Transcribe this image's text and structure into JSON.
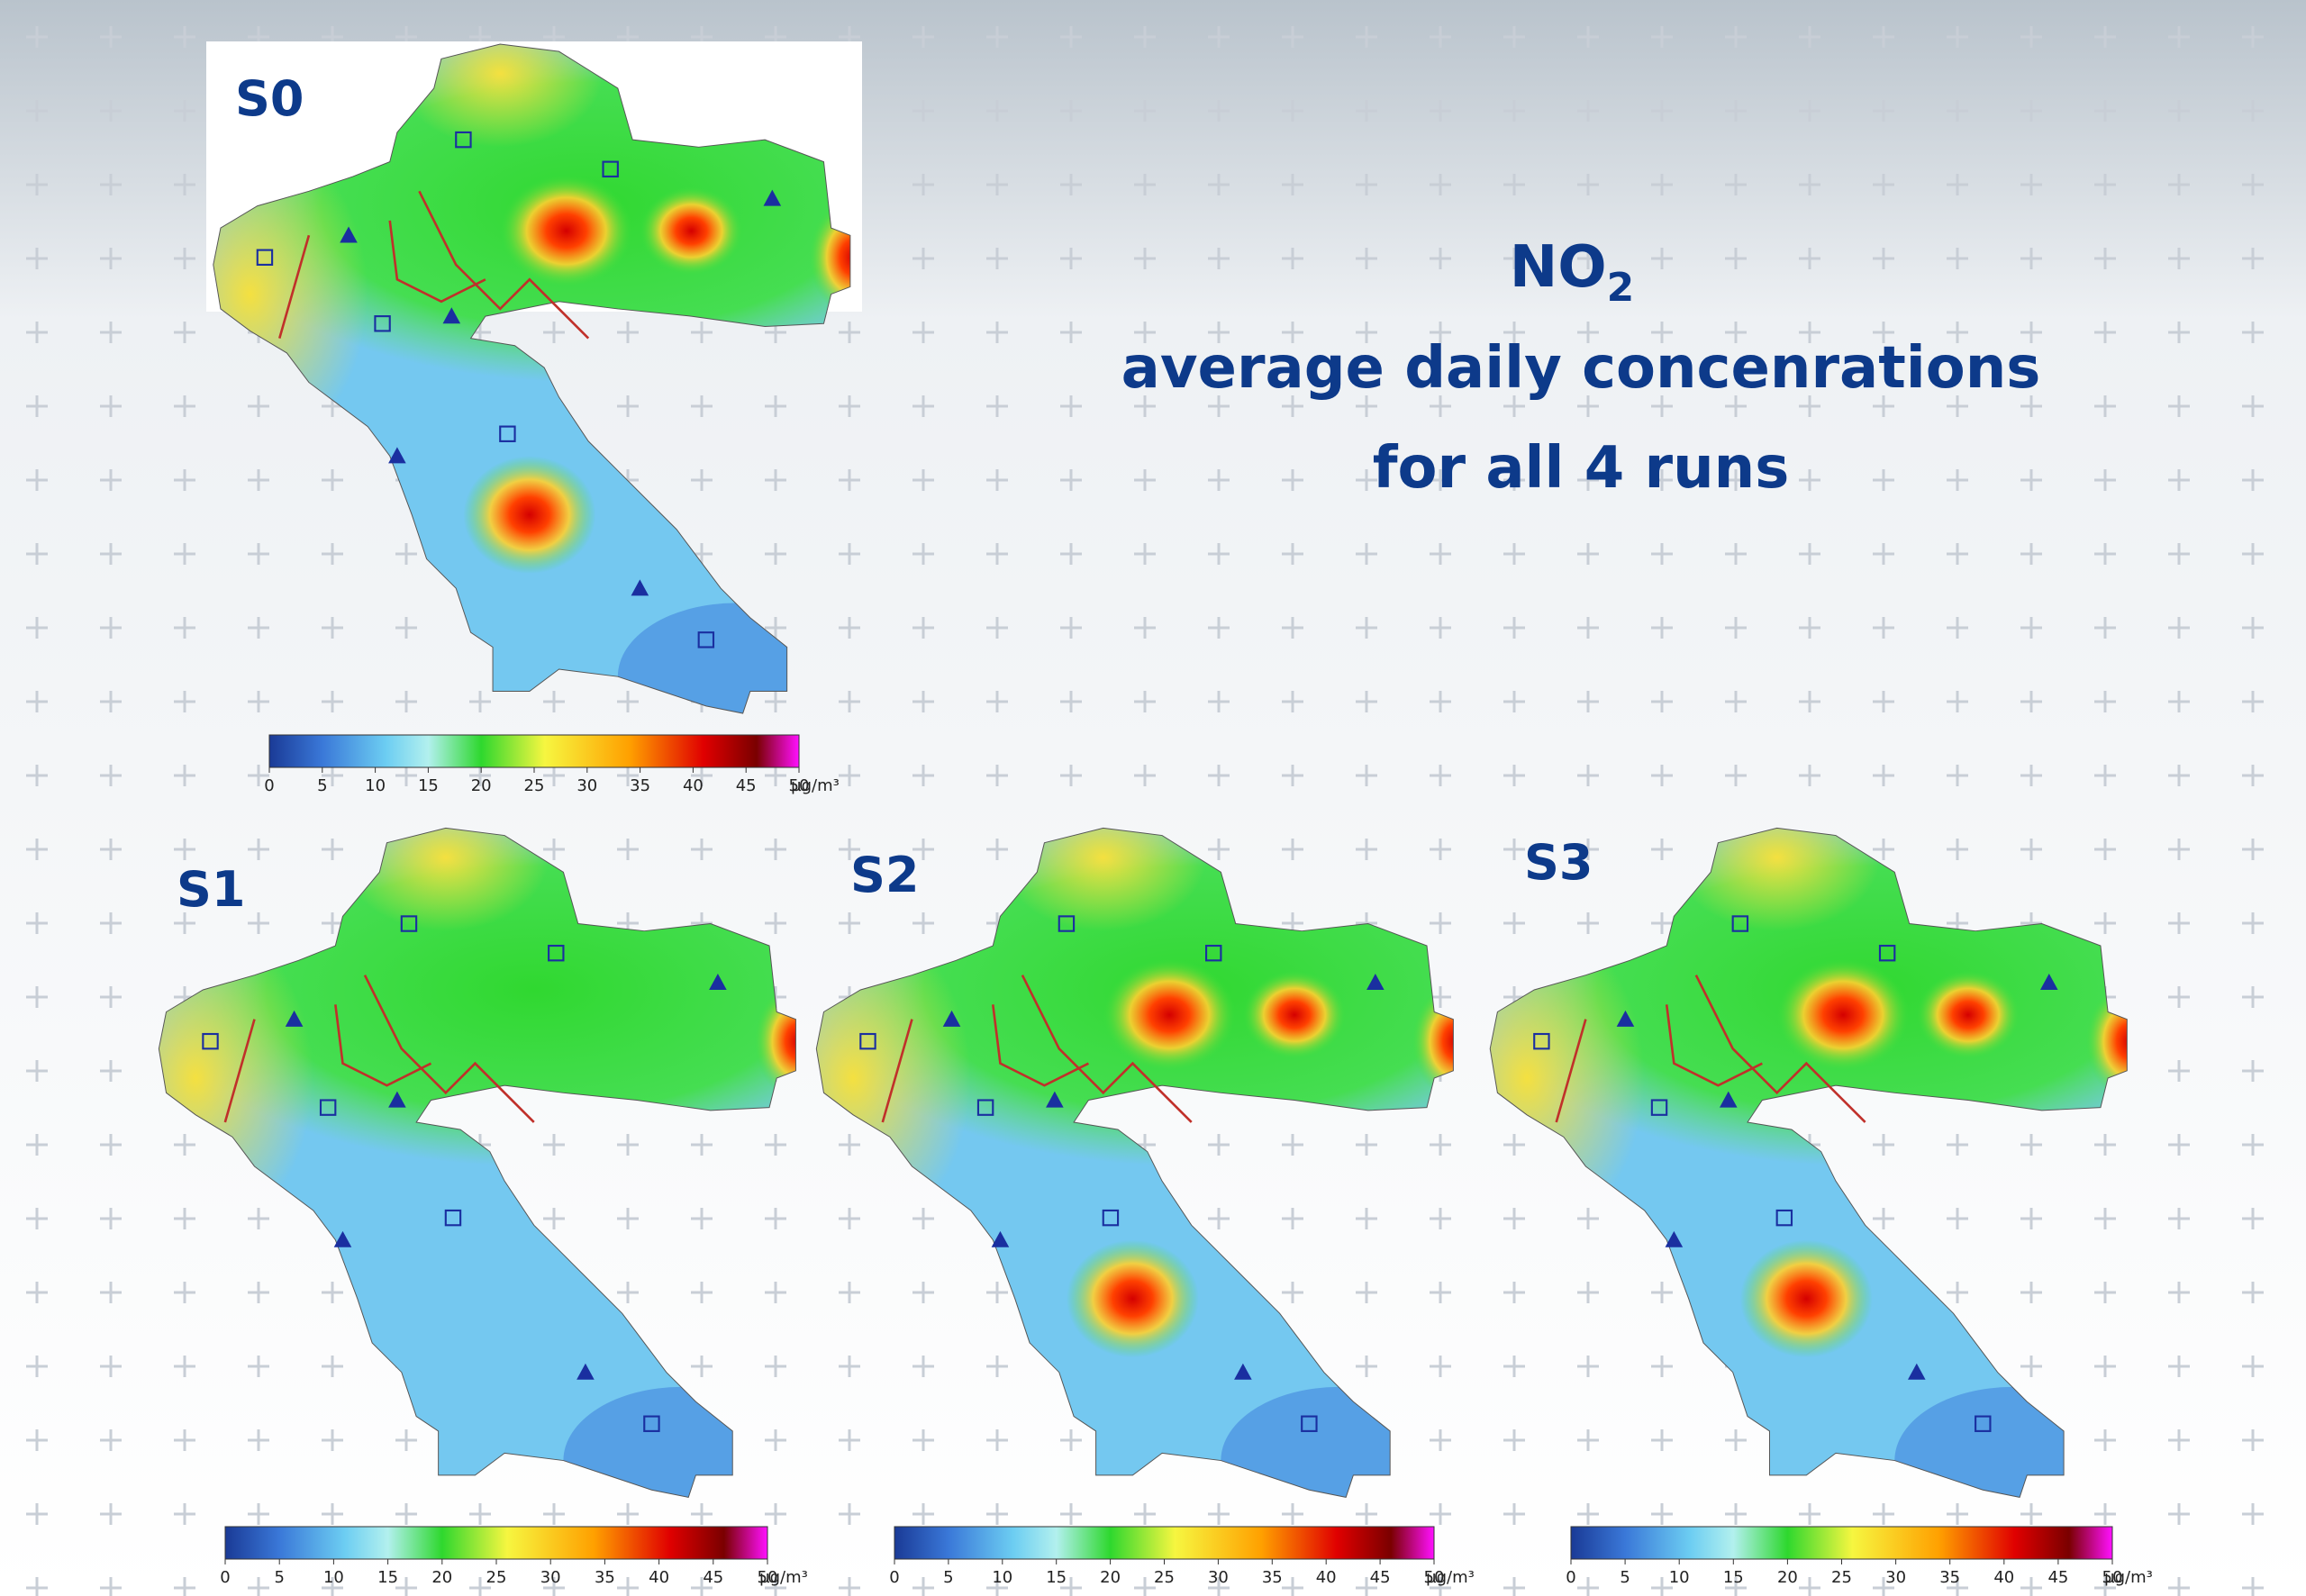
{
  "title": {
    "main": "NO",
    "subscript": "2",
    "line2": "average daily concenrations",
    "line3": "for all 4 runs"
  },
  "colorbar": {
    "ticks": [
      0,
      5,
      10,
      15,
      20,
      25,
      30,
      35,
      40,
      45,
      50
    ],
    "unit": "µg/m³"
  },
  "panels": [
    {
      "label": "S0"
    },
    {
      "label": "S1"
    },
    {
      "label": "S2"
    },
    {
      "label": "S3"
    }
  ]
}
